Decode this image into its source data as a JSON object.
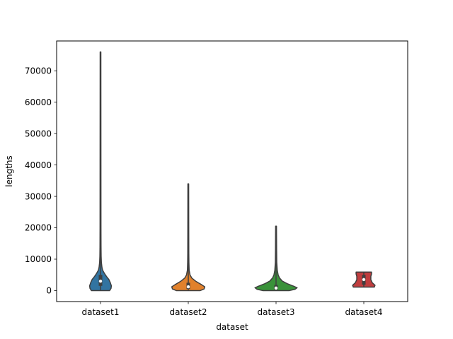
{
  "chart_data": {
    "type": "violin",
    "xlabel": "dataset",
    "ylabel": "lengths",
    "ylim": [
      -3500,
      79500
    ],
    "yticks": [
      0,
      10000,
      20000,
      30000,
      40000,
      50000,
      60000,
      70000
    ],
    "ytick_labels": [
      "0",
      "10000",
      "20000",
      "30000",
      "40000",
      "50000",
      "60000",
      "70000"
    ],
    "grid": false,
    "categories": [
      "dataset1",
      "dataset2",
      "dataset3",
      "dataset4"
    ],
    "colors": [
      "#3274a1",
      "#e1812c",
      "#3a923a",
      "#c03d3e"
    ],
    "series": [
      {
        "category": "dataset1",
        "min": 0,
        "max": 76000,
        "q1": 1500,
        "median": 3000,
        "q3": 5000,
        "profile": [
          [
            0,
            0.26
          ],
          [
            700,
            0.3
          ],
          [
            1500,
            0.31
          ],
          [
            2500,
            0.28
          ],
          [
            3500,
            0.24
          ],
          [
            4500,
            0.17
          ],
          [
            5500,
            0.11
          ],
          [
            6500,
            0.06
          ],
          [
            7500,
            0.04
          ],
          [
            9000,
            0.025
          ],
          [
            11000,
            0.018
          ],
          [
            14000,
            0.015
          ],
          [
            20000,
            0.013
          ],
          [
            40000,
            0.012
          ],
          [
            76000,
            0.01
          ]
        ]
      },
      {
        "category": "dataset2",
        "min": 0,
        "max": 34000,
        "q1": 500,
        "median": 1200,
        "q3": 2500,
        "profile": [
          [
            0,
            0.34
          ],
          [
            500,
            0.45
          ],
          [
            1200,
            0.47
          ],
          [
            2000,
            0.36
          ],
          [
            3000,
            0.21
          ],
          [
            4000,
            0.1
          ],
          [
            5000,
            0.05
          ],
          [
            6500,
            0.025
          ],
          [
            9000,
            0.018
          ],
          [
            12000,
            0.015
          ],
          [
            20000,
            0.013
          ],
          [
            34000,
            0.011
          ]
        ]
      },
      {
        "category": "dataset3",
        "min": 0,
        "max": 20500,
        "q1": 300,
        "median": 800,
        "q3": 1800,
        "profile": [
          [
            0,
            0.38
          ],
          [
            400,
            0.54
          ],
          [
            900,
            0.6
          ],
          [
            1500,
            0.48
          ],
          [
            2200,
            0.32
          ],
          [
            3000,
            0.18
          ],
          [
            4000,
            0.1
          ],
          [
            5000,
            0.06
          ],
          [
            6500,
            0.035
          ],
          [
            9000,
            0.02
          ],
          [
            13000,
            0.016
          ],
          [
            17000,
            0.014
          ],
          [
            20500,
            0.012
          ]
        ]
      },
      {
        "category": "dataset4",
        "min": 1100,
        "max": 5900,
        "q1": 1900,
        "median": 3500,
        "q3": 5000,
        "profile": [
          [
            1100,
            0.3
          ],
          [
            1700,
            0.32
          ],
          [
            2500,
            0.24
          ],
          [
            3500,
            0.2
          ],
          [
            4500,
            0.2
          ],
          [
            5300,
            0.22
          ],
          [
            5900,
            0.22
          ]
        ]
      }
    ]
  }
}
